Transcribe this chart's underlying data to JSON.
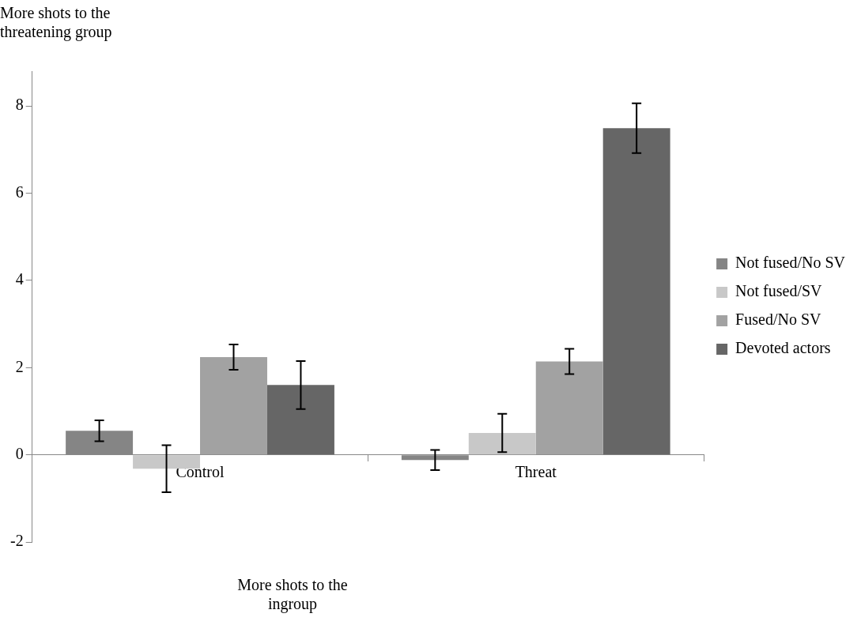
{
  "chart_data": {
    "type": "bar",
    "ylabel": "More shots to the threatening group",
    "xlabel": "More shots to the ingroup",
    "categories": [
      "Control",
      "Threat"
    ],
    "series": [
      {
        "name": "Not fused/No SV",
        "color": "#858585",
        "values": [
          0.55,
          -0.12
        ],
        "errors": [
          0.24,
          0.23
        ]
      },
      {
        "name": "Not fused/SV",
        "color": "#c8c8c8",
        "values": [
          -0.32,
          0.5
        ],
        "errors": [
          0.54,
          0.44
        ]
      },
      {
        "name": "Fused/No SV",
        "color": "#a2a2a2",
        "values": [
          2.24,
          2.14
        ],
        "errors": [
          0.29,
          0.29
        ]
      },
      {
        "name": "Devoted actors",
        "color": "#666666",
        "values": [
          1.6,
          7.49
        ],
        "errors": [
          0.55,
          0.57
        ]
      }
    ],
    "ylim": [
      -2,
      8.8
    ],
    "yticks": [
      -2,
      0,
      2,
      4,
      6,
      8
    ],
    "legend": "right"
  }
}
